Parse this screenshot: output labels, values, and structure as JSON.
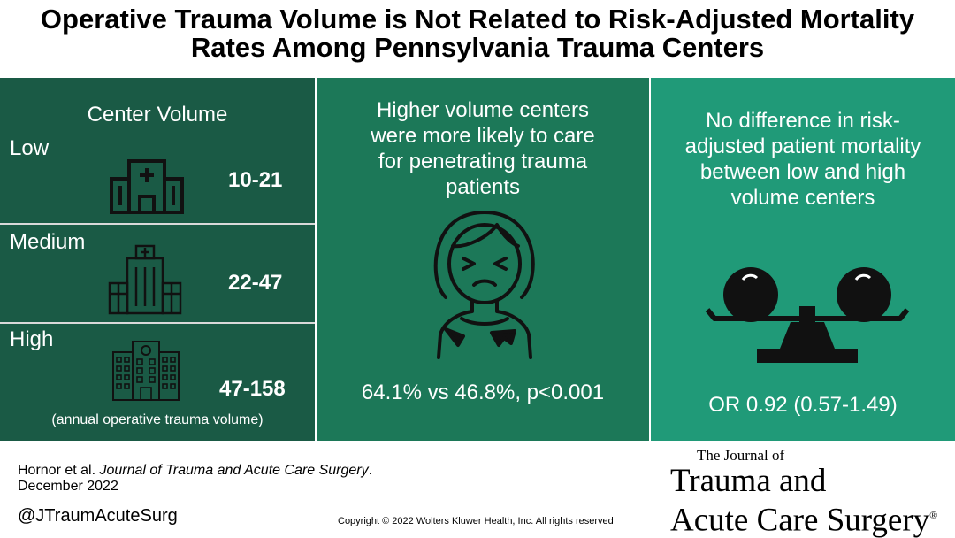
{
  "title": {
    "line1": "Operative Trauma Volume is Not Related to Risk-Adjusted Mortality",
    "line2": "Rates Among Pennsylvania Trauma Centers"
  },
  "volume_panel": {
    "heading": "Center Volume",
    "levels": [
      {
        "label": "Low",
        "range": "10-21",
        "icon": "small-hospital-icon"
      },
      {
        "label": "Medium",
        "range": "22-47",
        "icon": "medium-hospital-icon"
      },
      {
        "label": "High",
        "range": "47-158",
        "icon": "large-hospital-icon"
      }
    ],
    "note": "(annual operative trauma volume)"
  },
  "penetrating_panel": {
    "text_lines": [
      "Higher volume centers",
      "were more likely to care",
      "for penetrating trauma",
      "patients"
    ],
    "icon": "injured-patient-icon",
    "stat": "64.1% vs 46.8%, p<0.001"
  },
  "mortality_panel": {
    "text_lines": [
      "No difference in risk-",
      "adjusted patient mortality",
      "between low and high",
      "volume centers"
    ],
    "icon": "balance-scale-icon",
    "stat": "OR 0.92 (0.57-1.49)"
  },
  "footer": {
    "citation_authors": "Hornor et al. ",
    "citation_journal": "Journal of Trauma and Acute Care Surgery",
    "citation_end": ".",
    "citation_date": "December 2022",
    "handle": "@JTraumAcuteSurg",
    "copyright": "Copyright © 2022  Wolters Kluwer Health, Inc. All rights reserved"
  },
  "logo": {
    "line1": "The Journal of",
    "line2": "Trauma and",
    "line3": "Acute Care Surgery",
    "mark": "®"
  }
}
